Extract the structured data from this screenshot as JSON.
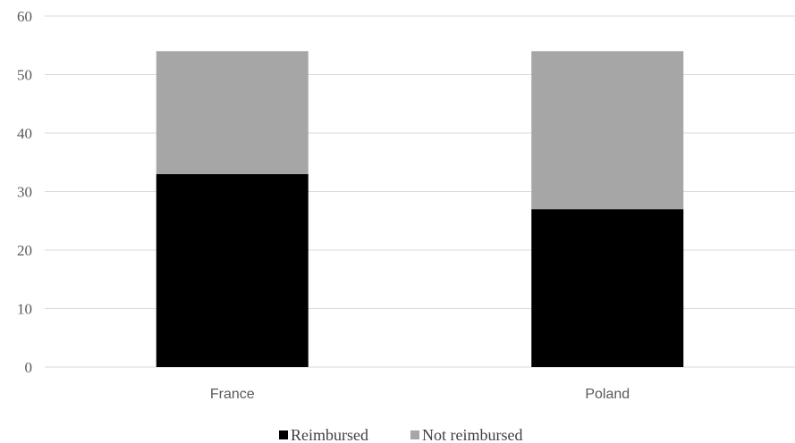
{
  "chart_data": {
    "type": "bar",
    "stacked": true,
    "categories": [
      "France",
      "Poland"
    ],
    "series": [
      {
        "name": "Reimbursed",
        "values": [
          33,
          27
        ],
        "color": "#000000"
      },
      {
        "name": "Not reimbursed",
        "values": [
          21,
          27
        ],
        "color": "#a6a6a6"
      }
    ],
    "ylim": [
      0,
      60
    ],
    "yticks": [
      0,
      10,
      20,
      30,
      40,
      50,
      60
    ],
    "grid": true,
    "legend": "bottom"
  }
}
